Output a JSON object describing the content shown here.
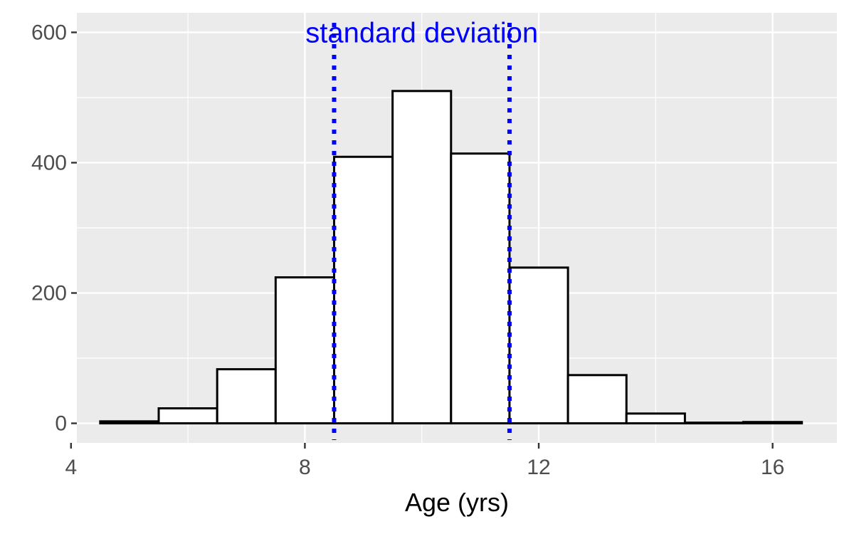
{
  "chart_data": {
    "type": "bar",
    "title": "",
    "xlabel": "Age (yrs)",
    "ylabel": "",
    "bin_width": 1,
    "bin_centers": [
      5,
      6,
      7,
      8,
      9,
      10,
      11,
      12,
      13,
      14,
      15,
      16
    ],
    "counts": [
      3,
      23,
      83,
      224,
      409,
      510,
      414,
      239,
      74,
      15,
      1,
      2
    ],
    "xlim": [
      4.1,
      17.1
    ],
    "ylim": [
      -30,
      630
    ],
    "x_ticks": [
      4,
      8,
      12,
      16
    ],
    "y_ticks": [
      0,
      200,
      400,
      600
    ],
    "x_tick_labels": [
      "4",
      "8",
      "12",
      "16"
    ],
    "y_tick_labels": [
      "0",
      "200",
      "400",
      "600"
    ],
    "grid": true,
    "vlines": [
      {
        "x": 8.5,
        "style": "dotted",
        "color": "#0000ff"
      },
      {
        "x": 11.5,
        "style": "dotted",
        "color": "#0000ff"
      }
    ],
    "annotation": {
      "text": "standard deviation",
      "x": 10,
      "y": 600,
      "color": "#0000ff"
    },
    "colors": {
      "panel_bg": "#ebebeb",
      "grid": "#ffffff",
      "bar_fill": "#ffffff",
      "bar_stroke": "#000000",
      "tick_text": "#4d4d4d",
      "tick_mark": "#333333"
    }
  }
}
